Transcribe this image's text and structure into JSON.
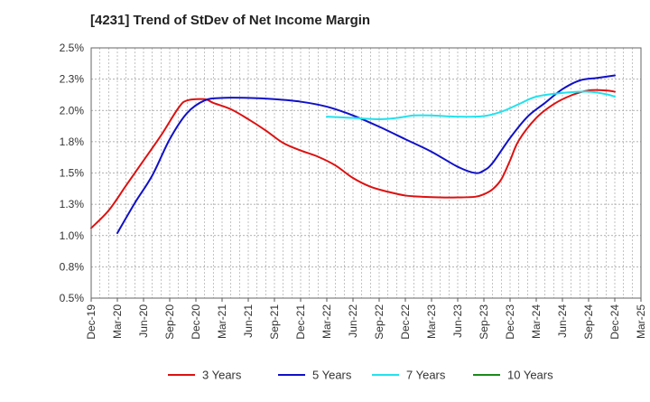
{
  "chart_data": {
    "type": "line",
    "title": "[4231]  Trend of StDev of Net Income Margin",
    "xlabel": "",
    "ylabel": "",
    "x_ticks": [
      "Dec-19",
      "Mar-20",
      "Jun-20",
      "Sep-20",
      "Dec-20",
      "Mar-21",
      "Jun-21",
      "Sep-21",
      "Dec-21",
      "Mar-22",
      "Jun-22",
      "Sep-22",
      "Dec-22",
      "Mar-23",
      "Jun-23",
      "Sep-23",
      "Dec-23",
      "Mar-24",
      "Jun-24",
      "Sep-24",
      "Dec-24",
      "Mar-25"
    ],
    "y_ticks": [
      "0.5%",
      "0.8%",
      "1.0%",
      "1.3%",
      "1.5%",
      "1.8%",
      "2.0%",
      "2.3%",
      "2.5%"
    ],
    "ylim": [
      0.5,
      2.5
    ],
    "grid": true,
    "legend_position": "bottom",
    "series": [
      {
        "name": "3 Years",
        "color": "#dd1111",
        "points": [
          [
            "Dec-19",
            1.06
          ],
          [
            "Feb-20",
            1.2
          ],
          [
            "Apr-20",
            1.4
          ],
          [
            "Jun-20",
            1.6
          ],
          [
            "Aug-20",
            1.8
          ],
          [
            "Oct-20",
            2.02
          ],
          [
            "Nov-20",
            2.08
          ],
          [
            "Jan-21",
            2.09
          ],
          [
            "Feb-21",
            2.06
          ],
          [
            "Apr-21",
            2.01
          ],
          [
            "Jun-21",
            1.93
          ],
          [
            "Aug-21",
            1.84
          ],
          [
            "Oct-21",
            1.74
          ],
          [
            "Dec-21",
            1.68
          ],
          [
            "Feb-22",
            1.63
          ],
          [
            "Apr-22",
            1.56
          ],
          [
            "Jun-22",
            1.46
          ],
          [
            "Aug-22",
            1.39
          ],
          [
            "Oct-22",
            1.35
          ],
          [
            "Dec-22",
            1.32
          ],
          [
            "Feb-23",
            1.31
          ],
          [
            "Apr-23",
            1.305
          ],
          [
            "Jun-23",
            1.305
          ],
          [
            "Aug-23",
            1.31
          ],
          [
            "Sep-23",
            1.33
          ],
          [
            "Oct-23",
            1.37
          ],
          [
            "Nov-23",
            1.45
          ],
          [
            "Dec-23",
            1.6
          ],
          [
            "Jan-24",
            1.76
          ],
          [
            "Mar-24",
            1.94
          ],
          [
            "May-24",
            2.05
          ],
          [
            "Jul-24",
            2.12
          ],
          [
            "Sep-24",
            2.16
          ],
          [
            "Nov-24",
            2.16
          ],
          [
            "Dec-24",
            2.15
          ]
        ]
      },
      {
        "name": "5 Years",
        "color": "#1010c8",
        "points": [
          [
            "Mar-20",
            1.02
          ],
          [
            "May-20",
            1.26
          ],
          [
            "Jul-20",
            1.48
          ],
          [
            "Sep-20",
            1.77
          ],
          [
            "Nov-20",
            1.98
          ],
          [
            "Jan-21",
            2.08
          ],
          [
            "Mar-21",
            2.1
          ],
          [
            "Jun-21",
            2.1
          ],
          [
            "Sep-21",
            2.09
          ],
          [
            "Dec-21",
            2.07
          ],
          [
            "Mar-22",
            2.03
          ],
          [
            "Jun-22",
            1.96
          ],
          [
            "Sep-22",
            1.87
          ],
          [
            "Dec-22",
            1.77
          ],
          [
            "Mar-23",
            1.67
          ],
          [
            "Jun-23",
            1.55
          ],
          [
            "Aug-23",
            1.5
          ],
          [
            "Sep-23",
            1.52
          ],
          [
            "Oct-23",
            1.58
          ],
          [
            "Dec-23",
            1.78
          ],
          [
            "Feb-24",
            1.95
          ],
          [
            "Apr-24",
            2.06
          ],
          [
            "Jun-24",
            2.17
          ],
          [
            "Aug-24",
            2.24
          ],
          [
            "Oct-24",
            2.26
          ],
          [
            "Dec-24",
            2.28
          ]
        ]
      },
      {
        "name": "7 Years",
        "color": "#22e2ee",
        "points": [
          [
            "Mar-22",
            1.95
          ],
          [
            "Jun-22",
            1.94
          ],
          [
            "Sep-22",
            1.93
          ],
          [
            "Nov-22",
            1.94
          ],
          [
            "Jan-23",
            1.96
          ],
          [
            "Mar-23",
            1.96
          ],
          [
            "Jun-23",
            1.95
          ],
          [
            "Sep-23",
            1.955
          ],
          [
            "Nov-23",
            1.99
          ],
          [
            "Jan-24",
            2.05
          ],
          [
            "Mar-24",
            2.11
          ],
          [
            "Jun-24",
            2.14
          ],
          [
            "Sep-24",
            2.15
          ],
          [
            "Nov-24",
            2.13
          ],
          [
            "Dec-24",
            2.11
          ]
        ]
      },
      {
        "name": "10 Years",
        "color": "#1a8a1a",
        "points": []
      }
    ]
  }
}
